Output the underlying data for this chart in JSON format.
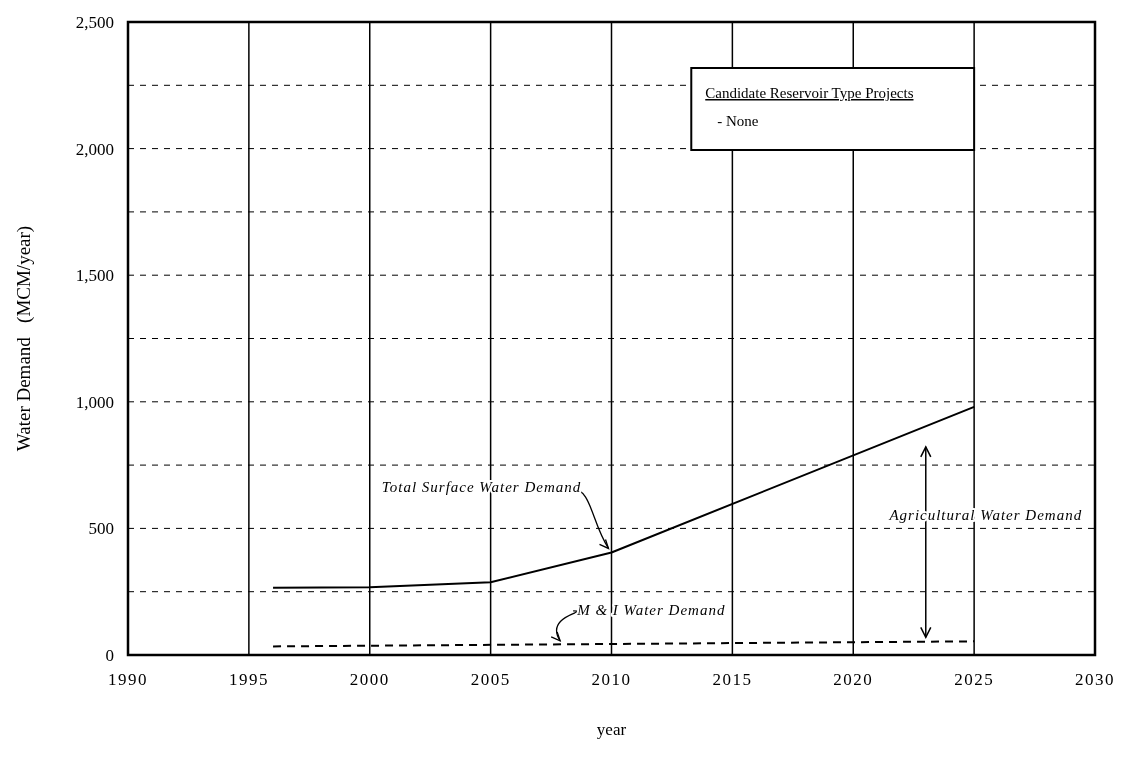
{
  "chart_data": {
    "type": "line",
    "xlabel": "year",
    "ylabel": "Water Demand   (MCM/year)",
    "xlim": [
      1990,
      2030
    ],
    "xticks": [
      1990,
      1995,
      2000,
      2005,
      2010,
      2015,
      2020,
      2025,
      2030
    ],
    "ylim": [
      0,
      2500
    ],
    "yticks": [
      {
        "value": 0,
        "label": "0"
      },
      {
        "value": 250,
        "label": null
      },
      {
        "value": 500,
        "label": "500"
      },
      {
        "value": 750,
        "label": null
      },
      {
        "value": 1000,
        "label": "1,000"
      },
      {
        "value": 1250,
        "label": null
      },
      {
        "value": 1500,
        "label": "1,500"
      },
      {
        "value": 1750,
        "label": null
      },
      {
        "value": 2000,
        "label": "2,000"
      },
      {
        "value": 2250,
        "label": null
      },
      {
        "value": 2500,
        "label": "2,500"
      }
    ],
    "grid": true,
    "marker": "none",
    "series": [
      {
        "color": "#000000",
        "line_style": "solid",
        "x": [
          1996,
          2000,
          2005,
          2010,
          2025
        ],
        "values": [
          266,
          268,
          287,
          405,
          980
        ]
      },
      {
        "color": "#000000",
        "line_style": "dashed",
        "x": [
          1996,
          2005,
          2025
        ],
        "values": [
          34,
          40,
          54
        ]
      }
    ],
    "annotations": [
      {
        "text": "Total Surface Water Demand",
        "x": 2010,
        "y": 405
      },
      {
        "text": "M & I Water Demand",
        "x": 2008,
        "y": 40
      },
      "Agricultural Water Demand",
      "Candidate Reservoir Type Projects",
      "- None"
    ]
  }
}
